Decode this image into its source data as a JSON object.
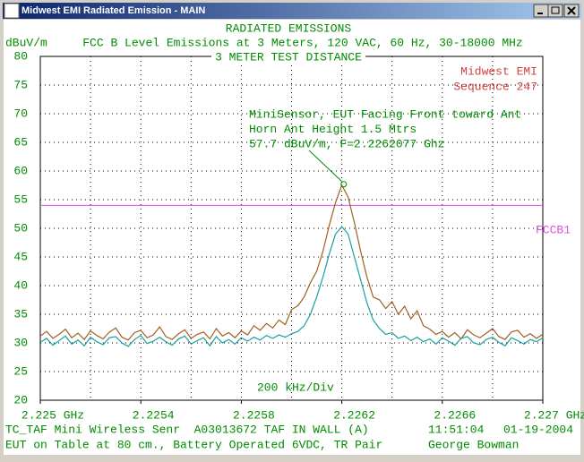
{
  "window": {
    "title": "Midwest EMI Radiated Emission - MAIN"
  },
  "chart_data": {
    "type": "line",
    "title": "RADIATED EMISSIONS",
    "subtitle": "FCC B Level Emissions at 3 Meters, 120 VAC, 60 Hz, 30-18000 MHz",
    "y_label": "dBuV/m",
    "distance_label": "3 METER TEST DISTANCE",
    "company": "Midwest EMI",
    "sequence": "Sequence 247",
    "x_label": "200 kHz/Div",
    "x": [
      2.225,
      2.225025,
      2.22505,
      2.225075,
      2.2251,
      2.225125,
      2.22515,
      2.225175,
      2.2252,
      2.225225,
      2.22525,
      2.225275,
      2.2253,
      2.225325,
      2.22535,
      2.225375,
      2.2254,
      2.225425,
      2.22545,
      2.225475,
      2.2255,
      2.225525,
      2.22555,
      2.225575,
      2.2256,
      2.225625,
      2.22565,
      2.225675,
      2.2257,
      2.225725,
      2.22575,
      2.225775,
      2.2258,
      2.225825,
      2.22585,
      2.225875,
      2.2259,
      2.225925,
      2.22595,
      2.225975,
      2.226,
      2.226025,
      2.22605,
      2.226075,
      2.2261,
      2.226125,
      2.22615,
      2.226175,
      2.2262,
      2.226225,
      2.22625,
      2.226275,
      2.2263,
      2.226325,
      2.22635,
      2.226375,
      2.2264,
      2.226425,
      2.22645,
      2.226475,
      2.2265,
      2.226525,
      2.22655,
      2.226575,
      2.2266,
      2.226625,
      2.22665,
      2.226675,
      2.2267,
      2.226725,
      2.22675,
      2.226775,
      2.2268,
      2.226825,
      2.22685,
      2.226875,
      2.2269,
      2.226925,
      2.22695,
      2.226975,
      2.227
    ],
    "series": [
      {
        "color": "#a0601e",
        "values": [
          31.2,
          32.0,
          30.8,
          31.5,
          32.4,
          30.9,
          31.7,
          30.6,
          32.1,
          31.3,
          30.7,
          31.9,
          32.6,
          31.0,
          30.5,
          31.8,
          32.2,
          30.9,
          31.4,
          32.8,
          31.1,
          30.6,
          31.6,
          32.3,
          30.8,
          31.5,
          31.9,
          30.7,
          32.5,
          31.2,
          31.8,
          30.9,
          32.1,
          31.4,
          33.0,
          32.2,
          33.4,
          32.6,
          34.0,
          33.2,
          35.8,
          36.5,
          38.0,
          40.5,
          42.5,
          46.0,
          50.5,
          54.5,
          57.5,
          55.5,
          51.0,
          46.0,
          41.5,
          38.0,
          37.5,
          36.0,
          37.2,
          35.0,
          36.4,
          34.2,
          35.6,
          33.0,
          32.4,
          31.5,
          32.0,
          31.0,
          31.8,
          30.7,
          32.3,
          31.4,
          30.9,
          31.7,
          32.5,
          31.1,
          30.6,
          31.9,
          32.2,
          31.0,
          31.6,
          30.8,
          31.5
        ]
      },
      {
        "color": "#18a0a0",
        "values": [
          30.1,
          30.8,
          29.6,
          30.4,
          31.2,
          29.8,
          30.5,
          29.5,
          31.0,
          30.2,
          29.7,
          30.9,
          31.1,
          30.0,
          29.4,
          30.6,
          31.3,
          29.9,
          30.3,
          31.0,
          30.2,
          29.6,
          30.7,
          31.2,
          29.8,
          30.4,
          30.9,
          29.5,
          31.1,
          30.0,
          30.6,
          29.8,
          30.9,
          30.3,
          31.0,
          30.5,
          31.3,
          30.8,
          31.4,
          31.0,
          31.6,
          32.0,
          33.0,
          35.0,
          38.0,
          41.5,
          45.5,
          49.0,
          50.3,
          49.0,
          45.0,
          41.0,
          37.0,
          34.0,
          32.5,
          31.5,
          31.8,
          30.8,
          31.2,
          30.4,
          31.0,
          30.2,
          30.7,
          29.8,
          30.9,
          30.3,
          29.6,
          30.8,
          31.1,
          30.0,
          29.7,
          30.6,
          31.0,
          30.1,
          29.5,
          30.9,
          30.4,
          29.8,
          30.6,
          30.2,
          30.9
        ]
      }
    ],
    "xlim": [
      2.225,
      2.227
    ],
    "xticks": [
      {
        "value": 2.225,
        "label": "2.225 GHz"
      },
      2.2254,
      2.2258,
      2.2262,
      2.2266,
      {
        "value": 2.227,
        "label": "2.227 GHz"
      }
    ],
    "x_grid": [
      2.2252,
      2.2254,
      2.2256,
      2.2258,
      2.226,
      2.2262,
      2.2264,
      2.2266,
      2.2268
    ],
    "ylim": [
      20,
      80
    ],
    "yticks": [
      20,
      25,
      30,
      35,
      40,
      45,
      50,
      55,
      60,
      65,
      70,
      75,
      80
    ],
    "grid": true,
    "limit_line": {
      "value": 54,
      "label": "FCCB1",
      "color": "#e050e0"
    },
    "annotation": {
      "lines": [
        "MiniSensor, EUT Facing Front toward Ant",
        "Horn Ant Height 1.5 Mtrs",
        "57.7 dBuV/m, F=2.2262077 Ghz"
      ],
      "x": 2.2262077,
      "y": 57.7
    }
  },
  "footer": {
    "lines": [
      [
        "TC_TAF Mini Wireless Senr  A03013672 TAF IN WALL (A)",
        "11:51:04",
        "01-19-2004"
      ],
      [
        "EUT on Table at 80 cm., Battery Operated 6VDC, TR Pair",
        "George Bowman"
      ]
    ]
  }
}
